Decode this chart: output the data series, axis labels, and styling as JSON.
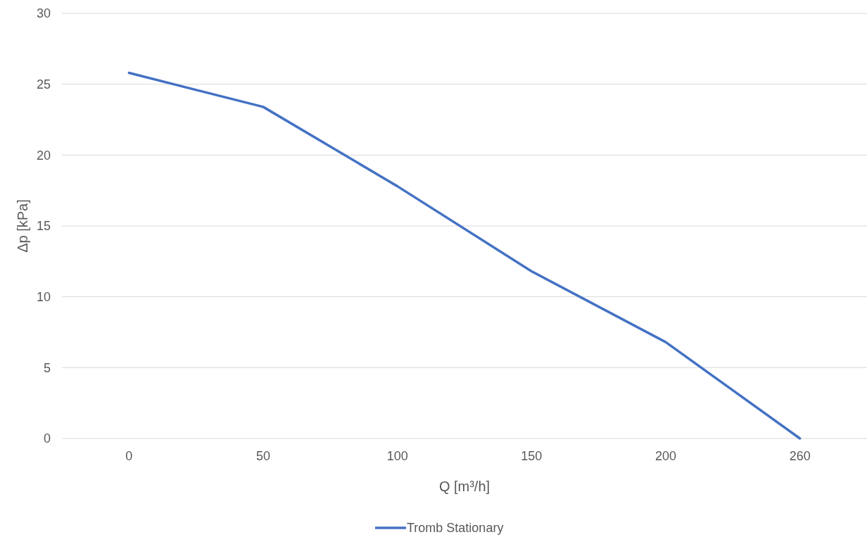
{
  "chart_data": {
    "type": "line",
    "xlabel": "Q [m³/h]",
    "ylabel": "Δp [kPa]",
    "categories": [
      "0",
      "50",
      "100",
      "150",
      "200",
      "260"
    ],
    "series": [
      {
        "name": "Tromb Stationary",
        "color": "#4472c4",
        "values": [
          25.8,
          23.4,
          17.8,
          11.8,
          6.8,
          0
        ]
      }
    ],
    "ylim": [
      0,
      30
    ],
    "yticks": [
      0,
      5,
      10,
      15,
      20,
      25,
      30
    ],
    "grid": "y",
    "legend": "bottom",
    "marker": "none",
    "line_style": "solid"
  }
}
